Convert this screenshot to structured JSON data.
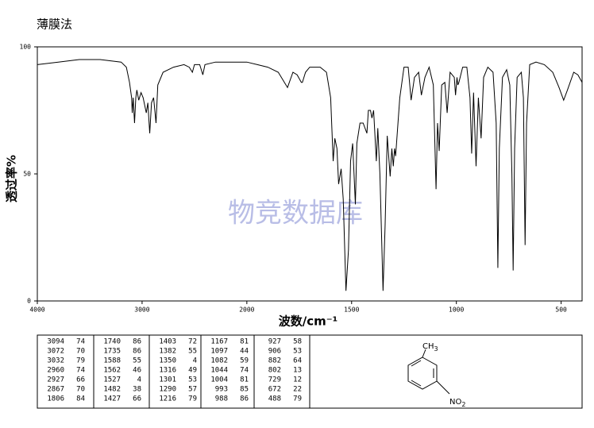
{
  "chart_data": {
    "type": "line",
    "title": "薄膜法",
    "x_label": "波数/cm⁻¹",
    "y_label": "透过率%",
    "watermark": "物竞数据库",
    "xlim": [
      4000,
      400
    ],
    "x_scale_change": {
      "at": 2000,
      "factor": 2
    },
    "xticks": [
      4000,
      3000,
      2000,
      1500,
      1000,
      500
    ],
    "ylim": [
      0,
      100
    ],
    "yticks": [
      0,
      50,
      100
    ],
    "color": "#000000",
    "x": [
      4000,
      3800,
      3600,
      3400,
      3200,
      3150,
      3120,
      3100,
      3094,
      3085,
      3072,
      3060,
      3050,
      3032,
      3010,
      2990,
      2960,
      2945,
      2927,
      2910,
      2890,
      2867,
      2850,
      2800,
      2700,
      2600,
      2550,
      2520,
      2500,
      2450,
      2420,
      2400,
      2300,
      2200,
      2100,
      2000,
      1950,
      1900,
      1850,
      1806,
      1780,
      1760,
      1740,
      1735,
      1720,
      1700,
      1650,
      1620,
      1600,
      1588,
      1580,
      1570,
      1562,
      1550,
      1540,
      1527,
      1515,
      1505,
      1495,
      1482,
      1475,
      1460,
      1445,
      1427,
      1420,
      1410,
      1403,
      1395,
      1382,
      1375,
      1365,
      1350,
      1340,
      1330,
      1316,
      1308,
      1301,
      1295,
      1290,
      1270,
      1250,
      1230,
      1216,
      1200,
      1180,
      1167,
      1150,
      1130,
      1110,
      1097,
      1090,
      1082,
      1070,
      1055,
      1044,
      1030,
      1010,
      1004,
      997,
      993,
      988,
      970,
      950,
      935,
      927,
      918,
      906,
      895,
      882,
      870,
      850,
      825,
      810,
      802,
      795,
      780,
      760,
      745,
      735,
      729,
      722,
      710,
      690,
      680,
      672,
      665,
      650,
      620,
      580,
      540,
      510,
      488,
      470,
      440,
      420,
      400
    ],
    "values": [
      93,
      94,
      95,
      95,
      94,
      92,
      86,
      80,
      74,
      80,
      70,
      80,
      83,
      79,
      82,
      80,
      74,
      78,
      66,
      78,
      80,
      70,
      85,
      90,
      92,
      93,
      92,
      90,
      93,
      93,
      89,
      93,
      94,
      94,
      94,
      94,
      93,
      92,
      90,
      84,
      90,
      89,
      86,
      86,
      90,
      92,
      92,
      90,
      80,
      55,
      64,
      60,
      46,
      52,
      40,
      4,
      20,
      55,
      62,
      38,
      62,
      70,
      70,
      66,
      75,
      75,
      72,
      75,
      55,
      68,
      50,
      4,
      30,
      65,
      49,
      60,
      53,
      60,
      57,
      80,
      92,
      92,
      79,
      88,
      90,
      81,
      88,
      92,
      85,
      44,
      70,
      59,
      85,
      86,
      74,
      90,
      88,
      81,
      88,
      85,
      86,
      92,
      92,
      80,
      58,
      82,
      53,
      80,
      64,
      88,
      92,
      90,
      70,
      13,
      60,
      88,
      91,
      85,
      50,
      12,
      60,
      88,
      90,
      80,
      22,
      70,
      93,
      94,
      93,
      90,
      84,
      79,
      83,
      90,
      89,
      86
    ]
  },
  "peak_table": {
    "columns": [
      [
        [
          3094,
          74
        ],
        [
          3072,
          70
        ],
        [
          3032,
          79
        ],
        [
          2960,
          74
        ],
        [
          2927,
          66
        ],
        [
          2867,
          70
        ],
        [
          1806,
          84
        ]
      ],
      [
        [
          1740,
          86
        ],
        [
          1735,
          86
        ],
        [
          1588,
          55
        ],
        [
          1562,
          46
        ],
        [
          1527,
          4
        ],
        [
          1482,
          38
        ],
        [
          1427,
          66
        ]
      ],
      [
        [
          1403,
          72
        ],
        [
          1382,
          55
        ],
        [
          1350,
          4
        ],
        [
          1316,
          49
        ],
        [
          1301,
          53
        ],
        [
          1290,
          57
        ],
        [
          1216,
          79
        ]
      ],
      [
        [
          1167,
          81
        ],
        [
          1097,
          44
        ],
        [
          1082,
          59
        ],
        [
          1044,
          74
        ],
        [
          1004,
          81
        ],
        [
          993,
          85
        ],
        [
          988,
          86
        ]
      ],
      [
        [
          927,
          58
        ],
        [
          906,
          53
        ],
        [
          882,
          64
        ],
        [
          802,
          13
        ],
        [
          729,
          12
        ],
        [
          672,
          22
        ],
        [
          488,
          79
        ]
      ]
    ]
  },
  "structure": {
    "substituents": [
      {
        "group": "CH",
        "sub": "3"
      },
      {
        "group": "NO",
        "sub": "2"
      }
    ]
  }
}
